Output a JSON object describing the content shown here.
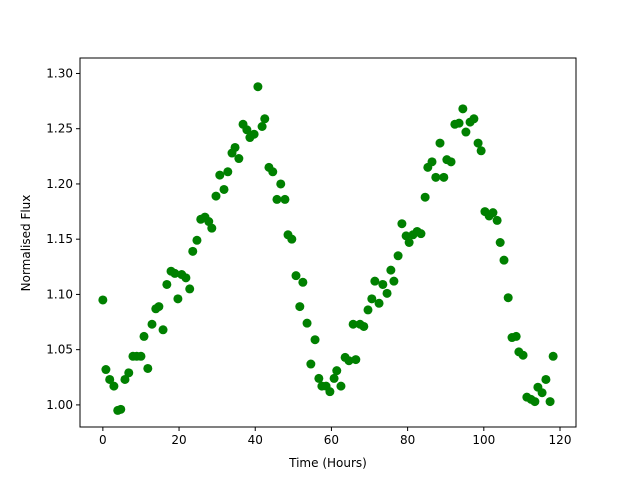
{
  "chart_data": {
    "type": "scatter",
    "x_label": "Time (Hours)",
    "y_label": "Normalised Flux",
    "color": "#008000",
    "xlim": [
      -6,
      124.2
    ],
    "ylim": [
      0.98,
      1.314
    ],
    "xticks": [
      0,
      20,
      40,
      60,
      80,
      100,
      120
    ],
    "yticks": [
      {
        "value": 1.0,
        "label": "1.00"
      },
      {
        "value": 1.05,
        "label": "1.05"
      },
      {
        "value": 1.1,
        "label": "1.10"
      },
      {
        "value": 1.15,
        "label": "1.15"
      },
      {
        "value": 1.2,
        "label": "1.20"
      },
      {
        "value": 1.25,
        "label": "1.25"
      },
      {
        "value": 1.3,
        "label": "1.30"
      }
    ],
    "x": [
      0,
      0.8,
      1.8,
      2.9,
      3.9,
      4.7,
      5.8,
      6.8,
      7.9,
      8.9,
      10.0,
      10.8,
      11.8,
      12.9,
      13.9,
      14.7,
      15.8,
      16.8,
      17.9,
      18.9,
      19.7,
      20.7,
      21.8,
      22.8,
      23.6,
      24.7,
      25.7,
      26.8,
      27.8,
      28.6,
      29.7,
      30.7,
      31.8,
      32.8,
      33.9,
      34.7,
      35.7,
      36.8,
      37.8,
      38.6,
      39.7,
      40.7,
      41.8,
      42.5,
      43.6,
      44.6,
      45.7,
      46.7,
      47.8,
      48.6,
      49.6,
      50.7,
      51.7,
      52.5,
      53.6,
      54.6,
      55.7,
      56.7,
      57.5,
      58.6,
      59.6,
      60.7,
      61.4,
      62.5,
      63.6,
      64.6,
      65.7,
      66.4,
      67.5,
      68.5,
      69.6,
      70.6,
      71.4,
      72.5,
      73.5,
      74.6,
      75.6,
      76.4,
      77.5,
      78.5,
      79.6,
      80.4,
      81.4,
      82.5,
      83.5,
      84.6,
      85.3,
      86.4,
      87.4,
      88.5,
      89.5,
      90.3,
      91.4,
      92.4,
      93.5,
      94.5,
      95.3,
      96.4,
      97.4,
      98.5,
      99.3,
      100.3,
      101.4,
      102.4,
      103.5,
      104.3,
      105.3,
      106.4,
      107.4,
      108.5,
      109.2,
      110.3,
      111.3,
      112.4,
      113.4,
      114.2,
      115.3,
      116.3,
      117.4,
      118.2
    ],
    "values": [
      1.095,
      1.032,
      1.023,
      1.017,
      0.995,
      0.996,
      1.023,
      1.029,
      1.044,
      1.044,
      1.044,
      1.062,
      1.033,
      1.073,
      1.087,
      1.089,
      1.068,
      1.109,
      1.121,
      1.119,
      1.096,
      1.118,
      1.115,
      1.105,
      1.139,
      1.149,
      1.168,
      1.17,
      1.166,
      1.16,
      1.189,
      1.208,
      1.195,
      1.211,
      1.228,
      1.233,
      1.223,
      1.254,
      1.249,
      1.242,
      1.245,
      1.288,
      1.252,
      1.259,
      1.215,
      1.211,
      1.186,
      1.2,
      1.186,
      1.154,
      1.15,
      1.117,
      1.089,
      1.111,
      1.074,
      1.037,
      1.059,
      1.024,
      1.017,
      1.017,
      1.012,
      1.024,
      1.031,
      1.017,
      1.043,
      1.04,
      1.073,
      1.041,
      1.073,
      1.071,
      1.086,
      1.096,
      1.112,
      1.092,
      1.109,
      1.101,
      1.122,
      1.112,
      1.135,
      1.164,
      1.153,
      1.147,
      1.154,
      1.157,
      1.155,
      1.188,
      1.215,
      1.22,
      1.206,
      1.237,
      1.206,
      1.222,
      1.22,
      1.254,
      1.255,
      1.268,
      1.247,
      1.256,
      1.259,
      1.237,
      1.23,
      1.175,
      1.171,
      1.174,
      1.167,
      1.147,
      1.131,
      1.097,
      1.061,
      1.062,
      1.048,
      1.045,
      1.007,
      1.005,
      1.003,
      1.016,
      1.011,
      1.023,
      1.003,
      1.044
    ]
  }
}
